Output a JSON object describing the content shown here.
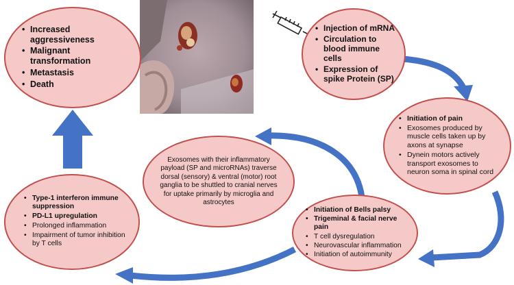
{
  "nodes": {
    "top_left": {
      "items": [
        "Increased aggressiveness",
        "Malignant transformation",
        "Metastasis",
        "Death"
      ]
    },
    "top_right": {
      "items": [
        "Injection of mRNA",
        "Circulation to blood immune cells",
        "Expression of spike Protein (SP)"
      ]
    },
    "mid_right": {
      "items": [
        "Initiation of pain",
        "Exosomes produced by muscle cells taken up by axons at synapse",
        "Dynein motors actively transport exosomes to neuron soma in spinal cord"
      ]
    },
    "center": {
      "text": "Exosomes with their inflammatory payload (SP and microRNAs) traverse dorsal (sensory) & ventral (motor) root ganglia to be shuttled to cranial nerves for uptake primarily by microglia and astrocytes"
    },
    "bottom_mid": {
      "items": [
        "Initiation of Bells palsy",
        "Trigeminal & facial nerve pain",
        "T cell dysregulation",
        "Neurovascular inflammation",
        "Initiation of autoimmunity"
      ]
    },
    "bottom_left": {
      "items": [
        "Type-1 interferon immune suppression",
        "PD-L1 upregulation",
        "Prolonged inflammation",
        "Impairment of tumor inhibition by T cells"
      ]
    }
  },
  "icons": {
    "syringe": "syringe-icon",
    "photo": "skin-lesion-photo"
  },
  "colors": {
    "ellipse_fill": "#f6c9c9",
    "ellipse_border": "#c0504d",
    "arrow": "#4472c4"
  }
}
